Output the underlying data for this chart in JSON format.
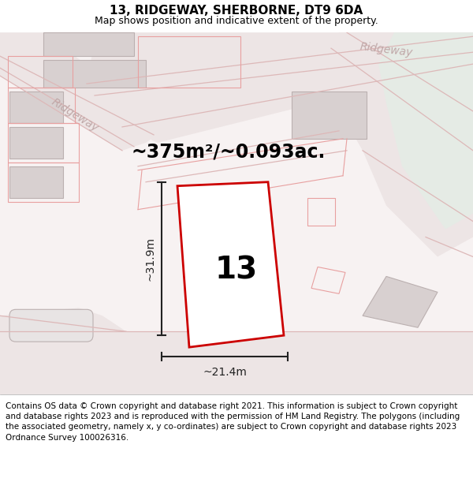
{
  "title_line1": "13, RIDGEWAY, SHERBORNE, DT9 6DA",
  "title_line2": "Map shows position and indicative extent of the property.",
  "area_text": "~375m²/~0.093ac.",
  "width_label": "~21.4m",
  "height_label": "~31.9m",
  "number_label": "13",
  "footer_text": "Contains OS data © Crown copyright and database right 2021. This information is subject to Crown copyright and database rights 2023 and is reproduced with the permission of HM Land Registry. The polygons (including the associated geometry, namely x, y co-ordinates) are subject to Crown copyright and database rights 2023 Ordnance Survey 100026316.",
  "map_bg": "#f7f2f2",
  "road_fill": "#ede5e5",
  "plot_color": "#cc0000",
  "plot_fill": "#ffffff",
  "building_fill": "#d8d0d0",
  "building_edge": "#bbb0b0",
  "green_fill": "#e5ebe5",
  "dim_color": "#222222",
  "road_line_color": "#ddb8b8",
  "plot_outline_color": "#e8a0a0",
  "road_label_color": "#c0a8a8",
  "title1_fontsize": 11,
  "title2_fontsize": 9,
  "area_fontsize": 17,
  "number_fontsize": 28,
  "dim_fontsize": 10,
  "footer_fontsize": 7.5
}
